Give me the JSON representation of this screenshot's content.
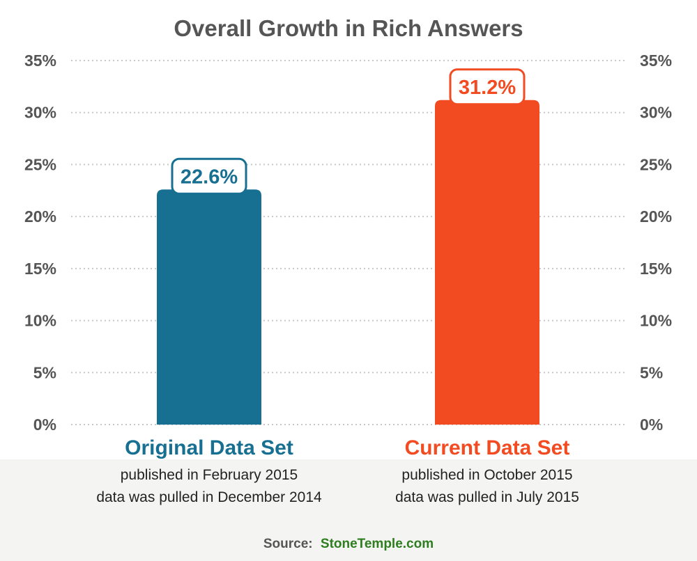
{
  "chart_data": {
    "type": "bar",
    "title": "Overall Growth in Rich Answers",
    "categories": [
      "Original Data Set",
      "Current Data Set"
    ],
    "values": [
      22.6,
      31.2
    ],
    "value_labels": [
      "22.6%",
      "31.2%"
    ],
    "subtitles": [
      [
        "published in February 2015",
        "data was pulled in December 2014"
      ],
      [
        "published in October 2015",
        "data was pulled in July 2015"
      ]
    ],
    "colors": [
      "#176f91",
      "#f24a21"
    ],
    "ylim": [
      0,
      35
    ],
    "yticks": [
      0,
      5,
      10,
      15,
      20,
      25,
      30,
      35
    ],
    "ytick_labels": [
      "0%",
      "5%",
      "10%",
      "15%",
      "20%",
      "25%",
      "30%",
      "35%"
    ],
    "y_axis_sides": "both",
    "grid": true,
    "xlabel": "",
    "ylabel": ""
  },
  "source": {
    "prefix": "Source:",
    "name": "StoneTemple.com",
    "name_color": "#2e7d1f"
  }
}
